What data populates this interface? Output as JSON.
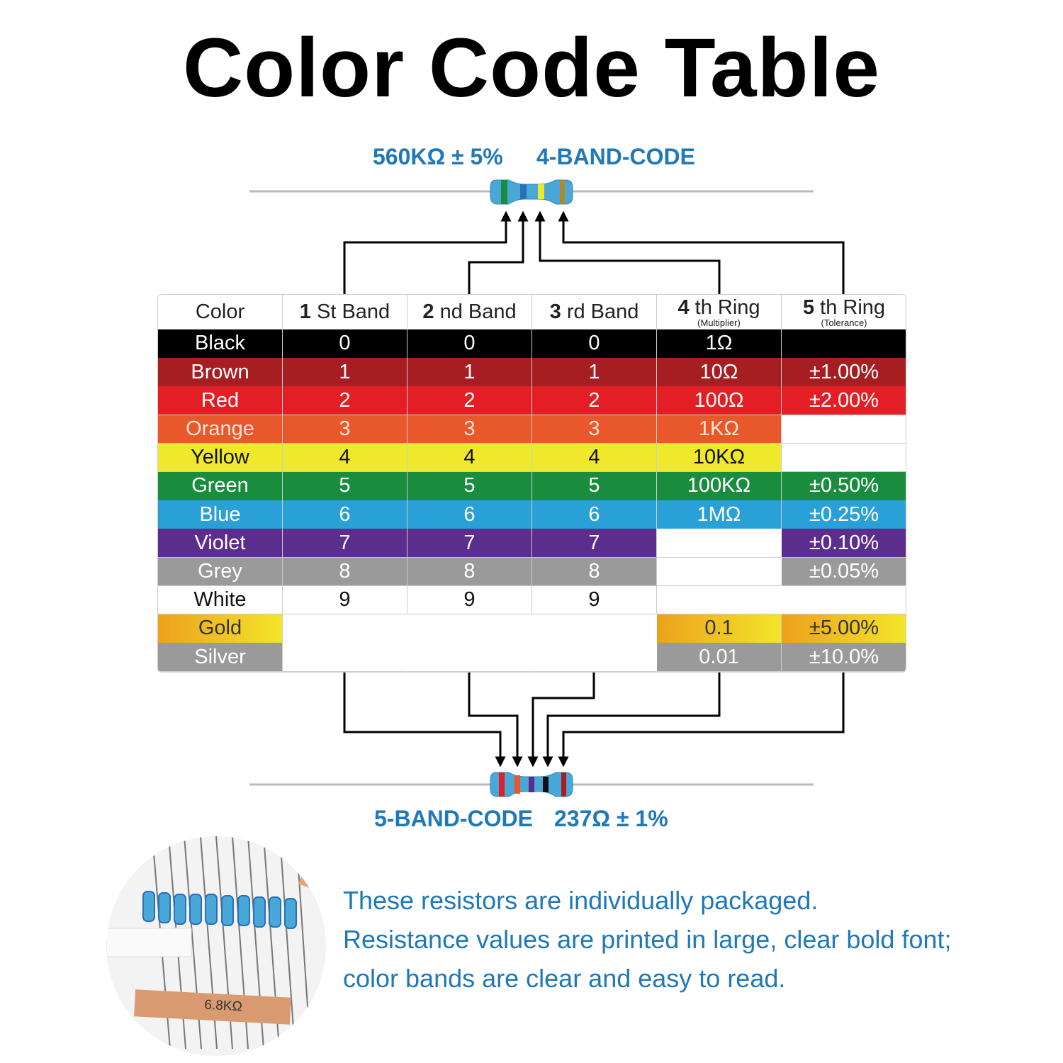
{
  "title": "Color Code Table",
  "top_code": {
    "value": "560KΩ ± 5%",
    "label": "4-BAND-CODE"
  },
  "bottom_code": {
    "label": "5-BAND-CODE",
    "value": "237Ω ± 1%"
  },
  "table": {
    "headers": [
      {
        "text": "Color"
      },
      {
        "number": "1",
        "text": "St Band"
      },
      {
        "number": "2",
        "text": "nd Band"
      },
      {
        "number": "3",
        "text": "rd Band"
      },
      {
        "number": "4",
        "text": "th Ring",
        "note": "(Multiplier)"
      },
      {
        "number": "5",
        "text": "th Ring",
        "note": "(Tolerance)"
      }
    ],
    "rows": [
      {
        "color": "Black",
        "values": [
          "0",
          "0",
          "0",
          "1Ω",
          null
        ]
      },
      {
        "color": "Brown",
        "values": [
          "1",
          "1",
          "1",
          "10Ω",
          "±1.00%"
        ]
      },
      {
        "color": "Red",
        "values": [
          "2",
          "2",
          "2",
          "100Ω",
          "±2.00%"
        ]
      },
      {
        "color": "Orange",
        "values": [
          "3",
          "3",
          "3",
          "1KΩ",
          null
        ]
      },
      {
        "color": "Yellow",
        "values": [
          "4",
          "4",
          "4",
          "10KΩ",
          null
        ]
      },
      {
        "color": "Green",
        "values": [
          "5",
          "5",
          "5",
          "100KΩ",
          "±0.50%"
        ]
      },
      {
        "color": "Blue",
        "values": [
          "6",
          "6",
          "6",
          "1MΩ",
          "±0.25%"
        ]
      },
      {
        "color": "Violet",
        "values": [
          "7",
          "7",
          "7",
          null,
          "±0.10%"
        ]
      },
      {
        "color": "Grey",
        "values": [
          "8",
          "8",
          "8",
          null,
          "±0.05%"
        ]
      },
      {
        "color": "White",
        "values": [
          "9",
          "9",
          "9",
          null,
          null
        ]
      },
      {
        "color": "Gold",
        "values": [
          null,
          null,
          null,
          "0.1",
          "±5.00%"
        ]
      },
      {
        "color": "Silver",
        "values": [
          null,
          null,
          null,
          "0.01",
          "±10.0%"
        ]
      }
    ]
  },
  "photo_label": "6.8KΩ",
  "description": [
    "These resistors are individually packaged.",
    "Resistance values are printed in large, clear bold font;",
    "color bands are clear and easy to read."
  ]
}
